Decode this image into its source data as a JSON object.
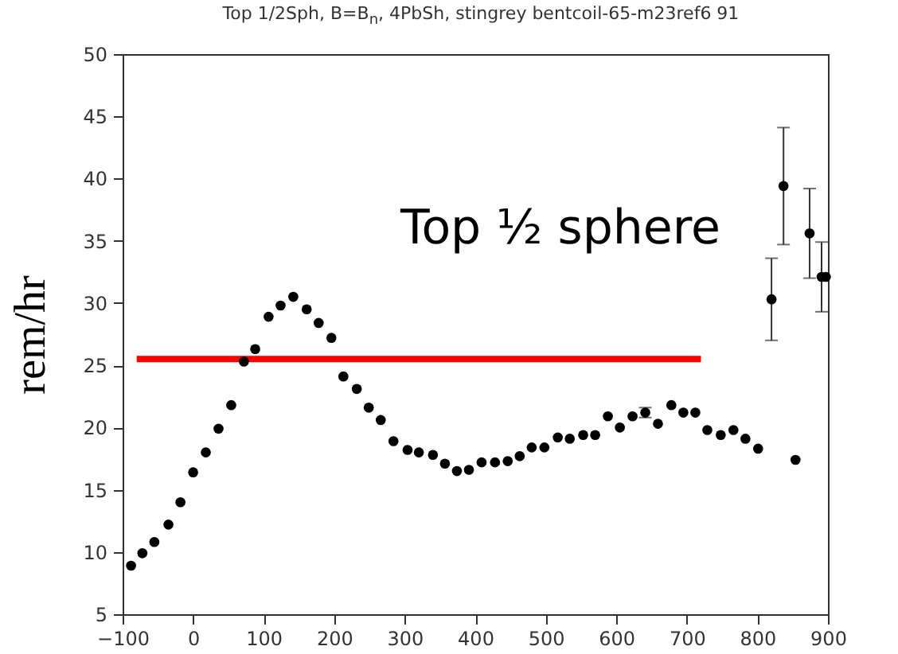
{
  "chart_data": {
    "type": "scatter",
    "title": "Top 1/2Sph, B=B$_{n}$, 4PbSh, stingrey  bentcoil-65-m23ref6 91",
    "ylabel": "rem/hr",
    "annotations": [
      "Top ½ sphere"
    ],
    "xlim": [
      -100,
      900
    ],
    "xticks": [
      -100,
      0,
      100,
      200,
      300,
      400,
      500,
      600,
      700,
      800,
      900
    ],
    "ylim": [
      5,
      50
    ],
    "yticks": [
      5,
      10,
      15,
      20,
      25,
      30,
      35,
      40,
      45,
      50
    ],
    "grid": false,
    "series": [
      {
        "type": "line",
        "color": "#ff0000",
        "line_style": "solid",
        "marker": "none",
        "x": [
          -80,
          720
        ],
        "values": [
          25.5,
          25.5
        ]
      },
      {
        "color": "#000000",
        "marker": "circle",
        "x": [
          -88,
          -72,
          -55,
          -35,
          -18,
          0,
          18,
          36,
          54,
          72,
          88,
          107,
          124,
          142,
          161,
          178,
          196,
          213,
          232,
          249,
          266,
          284,
          304,
          320,
          340,
          357,
          374,
          391,
          409,
          428,
          446,
          463,
          480,
          498,
          517,
          534,
          553,
          570,
          588,
          605,
          623,
          641,
          659,
          678,
          695,
          712,
          729,
          748,
          766,
          783,
          801,
          820,
          837,
          854,
          874,
          891,
          897
        ],
        "values": [
          8.9,
          9.9,
          10.8,
          12.2,
          14.0,
          16.4,
          18.0,
          19.9,
          21.8,
          25.3,
          26.3,
          28.9,
          29.8,
          30.5,
          29.5,
          28.4,
          27.2,
          24.1,
          23.1,
          21.6,
          20.6,
          18.9,
          18.2,
          18.0,
          17.8,
          17.1,
          16.5,
          16.6,
          17.2,
          17.2,
          17.3,
          17.7,
          18.4,
          18.4,
          19.2,
          19.1,
          19.4,
          19.4,
          20.9,
          20.0,
          20.9,
          21.2,
          20.3,
          21.8,
          21.2,
          21.2,
          19.8,
          19.4,
          19.8,
          19.1,
          18.3,
          30.3,
          39.4,
          17.4,
          35.6,
          32.1,
          32.1
        ],
        "errors": [
          null,
          null,
          null,
          null,
          null,
          null,
          null,
          null,
          null,
          null,
          null,
          null,
          null,
          null,
          null,
          null,
          null,
          null,
          null,
          null,
          null,
          null,
          null,
          null,
          null,
          null,
          null,
          null,
          null,
          null,
          null,
          null,
          null,
          null,
          null,
          null,
          null,
          null,
          null,
          null,
          null,
          0.4,
          null,
          null,
          null,
          null,
          null,
          null,
          null,
          null,
          null,
          3.3,
          4.7,
          null,
          3.6,
          2.8,
          null
        ]
      }
    ]
  }
}
